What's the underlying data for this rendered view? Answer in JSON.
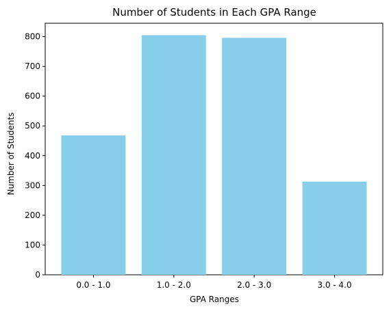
{
  "chart_data": {
    "type": "bar",
    "title": "Number of Students in Each GPA Range",
    "xlabel": "GPA Ranges",
    "ylabel": "Number of Students",
    "categories": [
      "0.0 - 1.0",
      "1.0 - 2.0",
      "2.0 - 3.0",
      "3.0 - 4.0"
    ],
    "values": [
      468,
      805,
      796,
      313
    ],
    "ylim": [
      0,
      845
    ],
    "yticks": [
      "0",
      "100",
      "200",
      "300",
      "400",
      "500",
      "600",
      "700",
      "800"
    ],
    "bar_color": "#87CEEB",
    "grid": false,
    "legend": "none"
  }
}
